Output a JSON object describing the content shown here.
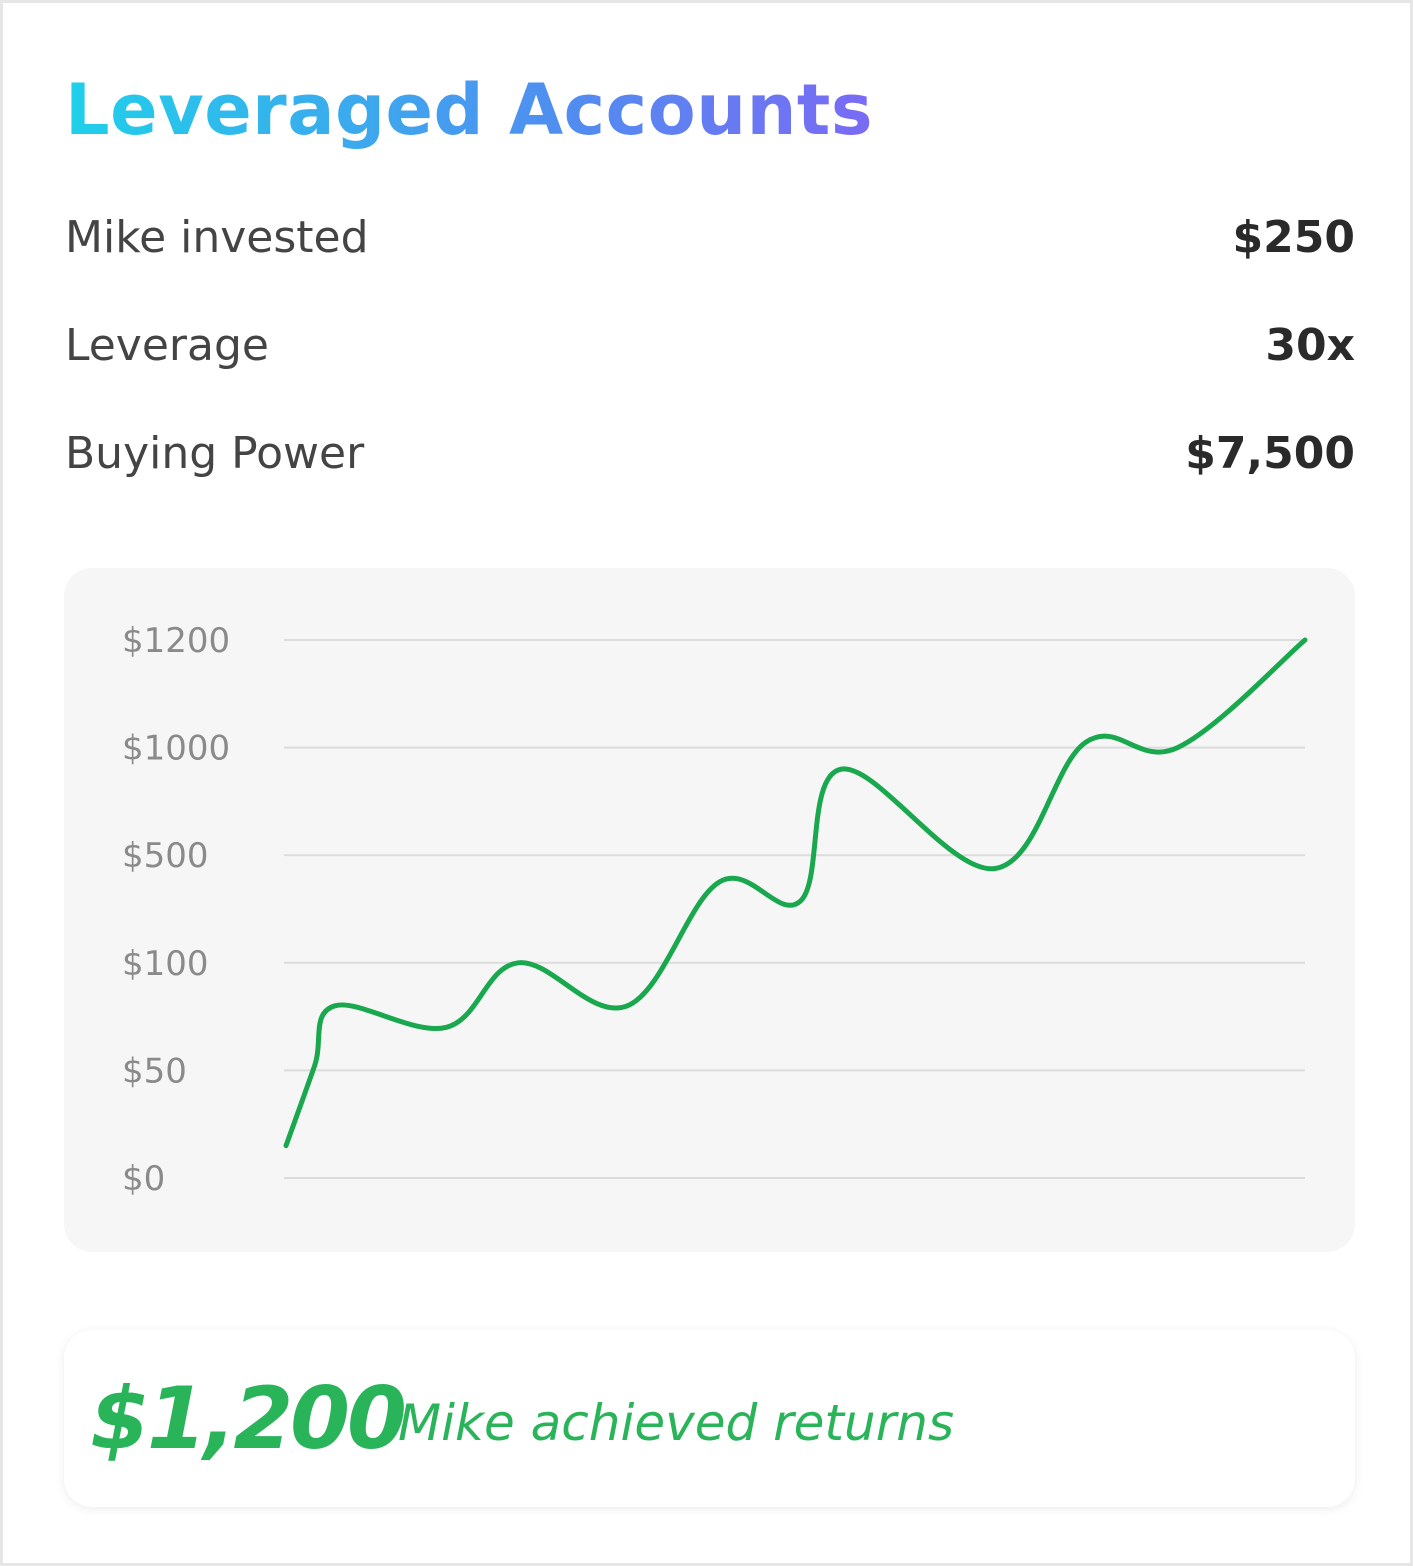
{
  "title": "Leveraged Accounts",
  "stats": [
    {
      "label": "Mike invested",
      "value": "$250"
    },
    {
      "label": "Leverage",
      "value": "30x"
    },
    {
      "label": "Buying Power",
      "value": "$7,500"
    }
  ],
  "colors": {
    "title_gradient": [
      "#1fd0ea",
      "#4f8ff0",
      "#7a6af4"
    ],
    "line": "#1aa84f",
    "result": "#2ab45a",
    "panel": "#f6f6f6",
    "grid": "#dcdcdc"
  },
  "chart_data": {
    "type": "line",
    "title": "",
    "xlabel": "",
    "ylabel": "",
    "y_ticks": [
      "$1200",
      "$1000",
      "$500",
      "$100",
      "$50",
      "$0"
    ],
    "y_scale": "categorical ticks, non-linear",
    "grid": true,
    "legend": "none",
    "series": [
      {
        "values": [
          {
            "x": 0,
            "y": 15
          },
          {
            "x": 2.8,
            "y": 52
          },
          {
            "x": 4.8,
            "y": 80
          },
          {
            "x": 15.7,
            "y": 70
          },
          {
            "x": 22.8,
            "y": 100
          },
          {
            "x": 33.5,
            "y": 80
          },
          {
            "x": 42.5,
            "y": 400
          },
          {
            "x": 50.5,
            "y": 330
          },
          {
            "x": 54.5,
            "y": 900
          },
          {
            "x": 69.5,
            "y": 450
          },
          {
            "x": 78.5,
            "y": 1010
          },
          {
            "x": 87.5,
            "y": 1000
          },
          {
            "x": 100,
            "y": 1200
          }
        ]
      }
    ]
  },
  "result": {
    "amount": "$1,200",
    "text": "Mike achieved returns"
  }
}
